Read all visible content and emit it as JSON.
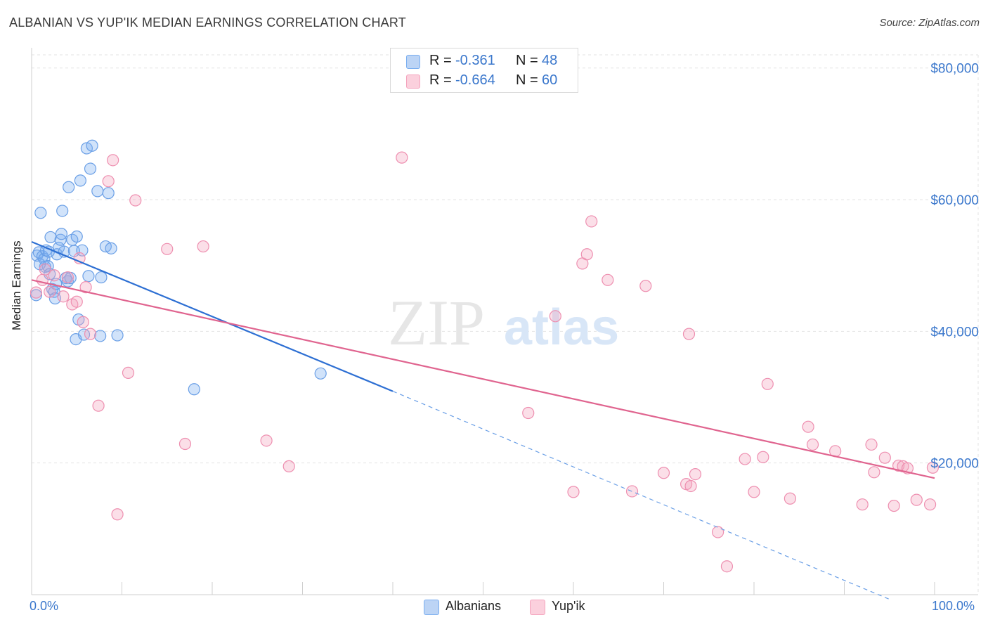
{
  "title": "ALBANIAN VS YUP'IK MEDIAN EARNINGS CORRELATION CHART",
  "source": "Source: ZipAtlas.com",
  "watermark": {
    "zip": "ZIP",
    "atlas": "atlas"
  },
  "legend": {
    "r_label": "R =",
    "n_label": "N =",
    "series": [
      {
        "name": "Albanians",
        "r": "-0.361",
        "n": "48",
        "color": "#7aaef0"
      },
      {
        "name": "Yup'ik",
        "r": "-0.664",
        "n": "60",
        "color": "#f4a3bd"
      }
    ]
  },
  "chart_data": {
    "type": "scatter",
    "title": "ALBANIAN VS YUP'IK MEDIAN EARNINGS CORRELATION CHART",
    "xlabel": "",
    "ylabel": "Median Earnings",
    "xlim": [
      0,
      100
    ],
    "ylim": [
      0,
      82000
    ],
    "x_tick_labels": [
      "0.0%",
      "100.0%"
    ],
    "y_ticks": [
      20000,
      40000,
      60000,
      80000
    ],
    "y_tick_labels": [
      "$20,000",
      "$40,000",
      "$60,000",
      "$80,000"
    ],
    "grid": true,
    "series": [
      {
        "name": "Albanians",
        "color": "#5b93e0",
        "trend": {
          "x0": 0,
          "y0": 53600,
          "x1": 40,
          "y1": 30900,
          "dashed_to_x": 95,
          "dashed_to_y": -700
        },
        "points": [
          [
            0.5,
            45500
          ],
          [
            0.6,
            51500
          ],
          [
            0.8,
            52000
          ],
          [
            1.0,
            58000
          ],
          [
            1.2,
            51400
          ],
          [
            1.4,
            51000
          ],
          [
            1.5,
            49800
          ],
          [
            1.6,
            52300
          ],
          [
            1.8,
            49900
          ],
          [
            2.0,
            48700
          ],
          [
            2.1,
            54300
          ],
          [
            2.3,
            46400
          ],
          [
            2.5,
            46000
          ],
          [
            2.6,
            45000
          ],
          [
            2.8,
            51700
          ],
          [
            3.0,
            52700
          ],
          [
            3.2,
            53900
          ],
          [
            3.3,
            54800
          ],
          [
            3.4,
            58300
          ],
          [
            3.6,
            52100
          ],
          [
            3.8,
            48100
          ],
          [
            4.0,
            47600
          ],
          [
            4.1,
            61900
          ],
          [
            4.5,
            53900
          ],
          [
            4.7,
            52200
          ],
          [
            4.9,
            38800
          ],
          [
            5.2,
            41800
          ],
          [
            5.4,
            62900
          ],
          [
            5.6,
            52300
          ],
          [
            5.8,
            39500
          ],
          [
            6.1,
            67800
          ],
          [
            6.3,
            48400
          ],
          [
            6.5,
            64700
          ],
          [
            6.7,
            68200
          ],
          [
            7.3,
            61300
          ],
          [
            7.6,
            39300
          ],
          [
            7.7,
            48200
          ],
          [
            8.2,
            52900
          ],
          [
            8.5,
            61000
          ],
          [
            8.8,
            52600
          ],
          [
            9.5,
            39400
          ],
          [
            18.0,
            31200
          ],
          [
            32.0,
            33600
          ],
          [
            0.9,
            50200
          ],
          [
            1.9,
            52100
          ],
          [
            2.7,
            47200
          ],
          [
            4.3,
            48100
          ],
          [
            5.0,
            54400
          ]
        ]
      },
      {
        "name": "Yup'ik",
        "color": "#e8739a",
        "trend": {
          "x0": 0,
          "y0": 47800,
          "x1": 100,
          "y1": 17700
        },
        "points": [
          [
            0.5,
            45900
          ],
          [
            1.5,
            49400
          ],
          [
            2.5,
            48500
          ],
          [
            3.5,
            45300
          ],
          [
            4.0,
            48200
          ],
          [
            4.5,
            44100
          ],
          [
            5.0,
            44500
          ],
          [
            5.3,
            51100
          ],
          [
            5.7,
            41400
          ],
          [
            6.0,
            46700
          ],
          [
            6.5,
            39600
          ],
          [
            7.4,
            28700
          ],
          [
            8.5,
            62800
          ],
          [
            9.0,
            66000
          ],
          [
            9.5,
            12200
          ],
          [
            10.7,
            33700
          ],
          [
            11.5,
            59900
          ],
          [
            15.0,
            52500
          ],
          [
            17.0,
            22900
          ],
          [
            19.0,
            52900
          ],
          [
            26.0,
            23400
          ],
          [
            28.5,
            19500
          ],
          [
            41.0,
            66400
          ],
          [
            55.0,
            27600
          ],
          [
            58.0,
            42300
          ],
          [
            60.0,
            15600
          ],
          [
            61.0,
            50300
          ],
          [
            61.5,
            51700
          ],
          [
            62.0,
            56700
          ],
          [
            63.8,
            47800
          ],
          [
            66.5,
            15700
          ],
          [
            68.0,
            46900
          ],
          [
            70.0,
            18500
          ],
          [
            72.5,
            16800
          ],
          [
            72.8,
            39600
          ],
          [
            73.0,
            16500
          ],
          [
            73.5,
            18300
          ],
          [
            76.0,
            9500
          ],
          [
            77.0,
            4300
          ],
          [
            79.0,
            20600
          ],
          [
            80.0,
            15600
          ],
          [
            81.0,
            20900
          ],
          [
            81.5,
            32000
          ],
          [
            84.0,
            14600
          ],
          [
            86.0,
            25500
          ],
          [
            86.5,
            22800
          ],
          [
            89.0,
            21800
          ],
          [
            92.0,
            13700
          ],
          [
            93.0,
            22800
          ],
          [
            93.3,
            18600
          ],
          [
            94.5,
            20800
          ],
          [
            95.5,
            13500
          ],
          [
            96.0,
            19600
          ],
          [
            96.5,
            19500
          ],
          [
            97.0,
            19200
          ],
          [
            98.0,
            14400
          ],
          [
            99.5,
            13700
          ],
          [
            99.8,
            19300
          ],
          [
            1.2,
            47800
          ],
          [
            2.0,
            46000
          ]
        ]
      }
    ]
  }
}
